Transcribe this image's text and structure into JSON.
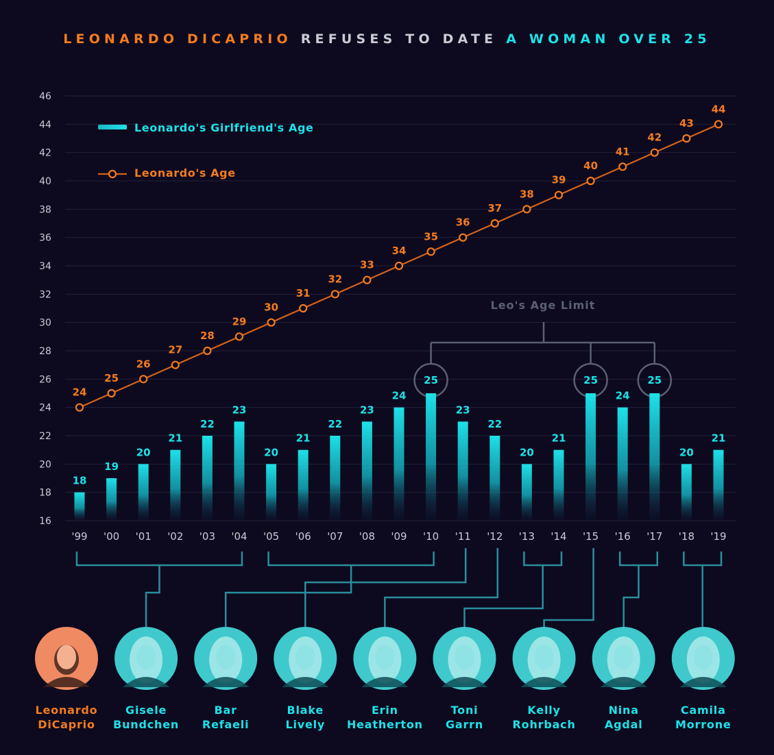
{
  "title": {
    "part1": "LEONARDO DICAPRIO",
    "part2": "REFUSES TO DATE",
    "part3": "A WOMAN OVER 25"
  },
  "colors": {
    "background": "#0d0a1f",
    "orange": "#f47b20",
    "cyan": "#1de2e8",
    "gray": "#c9ccd4",
    "grid": "#23213a",
    "connector": "#2a8f9b",
    "limit": "#5b6070"
  },
  "legend": {
    "bar_label": "Leonardo's Girlfriend's Age",
    "line_label": "Leonardo's Age"
  },
  "annotation": {
    "age_limit": "Leo's Age Limit"
  },
  "chart_data": {
    "type": "bar",
    "categories": [
      "'99",
      "'00",
      "'01",
      "'02",
      "'03",
      "'04",
      "'05",
      "'06",
      "'07",
      "'08",
      "'09",
      "'10",
      "'11",
      "'12",
      "'13",
      "'14",
      "'15",
      "'16",
      "'17",
      "'18",
      "'19"
    ],
    "series": [
      {
        "name": "Leonardo's Girlfriend's Age",
        "type": "bar",
        "values": [
          18,
          19,
          20,
          21,
          22,
          23,
          20,
          21,
          22,
          23,
          24,
          25,
          23,
          22,
          20,
          21,
          25,
          24,
          25,
          20,
          21
        ]
      },
      {
        "name": "Leonardo's Age",
        "type": "line",
        "values": [
          24,
          25,
          26,
          27,
          28,
          29,
          30,
          31,
          32,
          33,
          34,
          35,
          36,
          37,
          38,
          39,
          40,
          41,
          42,
          43,
          44
        ]
      }
    ],
    "ylim": [
      16,
      46
    ],
    "yticks": [
      16,
      18,
      20,
      22,
      24,
      26,
      28,
      30,
      32,
      34,
      36,
      38,
      40,
      42,
      44,
      46
    ],
    "grid": true,
    "legend_position": "top-left",
    "highlight_value": 25
  },
  "girlfriends": [
    {
      "first": "Leonardo",
      "last": "DiCaprio",
      "color": "orange",
      "from": "",
      "to": ""
    },
    {
      "first": "Gisele",
      "last": "Bundchen",
      "color": "cyan",
      "from": "'99",
      "to": "'04"
    },
    {
      "first": "Bar",
      "last": "Refaeli",
      "color": "cyan",
      "from": "'05",
      "to": "'10"
    },
    {
      "first": "Blake",
      "last": "Lively",
      "color": "cyan",
      "from": "'11",
      "to": "'11"
    },
    {
      "first": "Erin",
      "last": "Heatherton",
      "color": "cyan",
      "from": "'12",
      "to": "'12"
    },
    {
      "first": "Toni",
      "last": "Garrn",
      "color": "cyan",
      "from": "'13",
      "to": "'14"
    },
    {
      "first": "Kelly",
      "last": "Rohrbach",
      "color": "cyan",
      "from": "'15",
      "to": "'15"
    },
    {
      "first": "Nina",
      "last": "Agdal",
      "color": "cyan",
      "from": "'16",
      "to": "'17"
    },
    {
      "first": "Camila",
      "last": "Morrone",
      "color": "cyan",
      "from": "'18",
      "to": "'19"
    }
  ]
}
